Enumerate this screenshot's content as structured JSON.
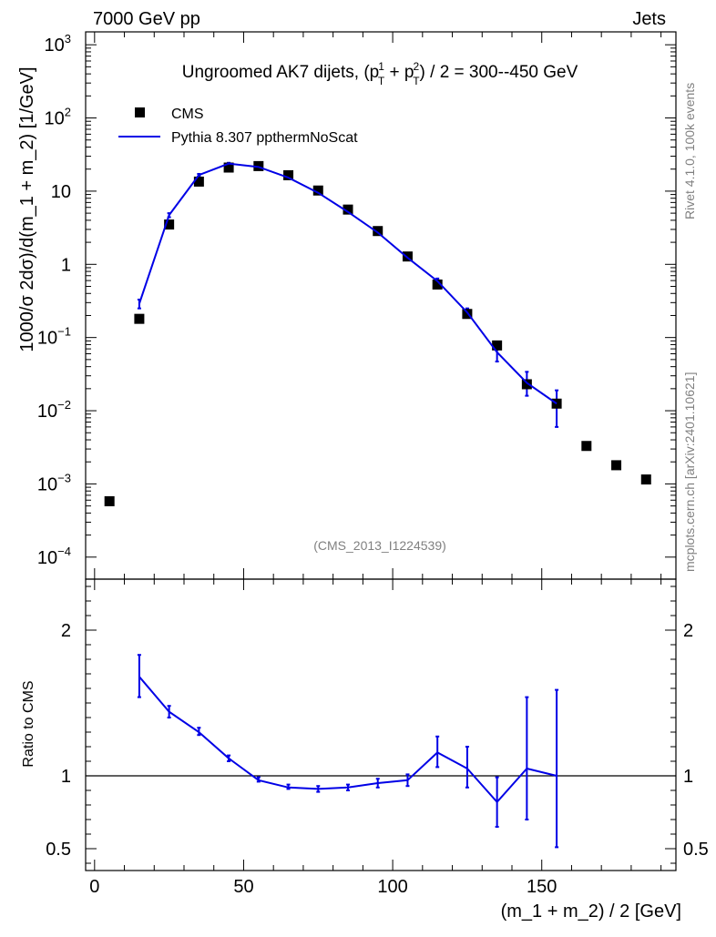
{
  "header": {
    "left": "7000 GeV pp",
    "right": "Jets",
    "side_top": "Rivet 4.1.0,  100k events",
    "side_bottom": "mcplots.cern.ch [arXiv:2401.10621]"
  },
  "chart_data": [
    {
      "type": "scatter",
      "panel": "main",
      "title_parts": {
        "prefix": "Ungroomed AK7 dijets, (p",
        "sup1": "1",
        "sub1": "T",
        "mid": " + p",
        "sup2": "2",
        "sub2": "T",
        "suffix": ") / 2 = 300--450 GeV"
      },
      "ylabel": "1000/σ  2dσ)/d(m_1 + m_2) [1/GeV]",
      "xlabel": "(m_1 + m_2) / 2 [GeV]",
      "yscale": "log",
      "xlim": [
        -3,
        195
      ],
      "ylim": [
        5e-05,
        1500
      ],
      "x_ticks": [
        "0",
        "50",
        "100",
        "150"
      ],
      "x_tick_values": [
        0,
        50,
        100,
        150
      ],
      "y_ticks": [
        {
          "value": 0.0001,
          "mant": "10",
          "exp": "−4"
        },
        {
          "value": 0.001,
          "mant": "10",
          "exp": "−3"
        },
        {
          "value": 0.01,
          "mant": "10",
          "exp": "−2"
        },
        {
          "value": 0.1,
          "mant": "10",
          "exp": "−1"
        },
        {
          "value": 1,
          "mant": "1",
          "exp": ""
        },
        {
          "value": 10,
          "mant": "10",
          "exp": ""
        },
        {
          "value": 100,
          "mant": "10",
          "exp": "2"
        },
        {
          "value": 1000,
          "mant": "10",
          "exp": "3"
        }
      ],
      "watermark": "(CMS_2013_I1224539)",
      "legend": {
        "position": "top-left",
        "data_label": "CMS",
        "mc_label": "Pythia 8.307 ppthermNoScat"
      },
      "series": [
        {
          "name": "CMS",
          "style": "black-square",
          "x": [
            5,
            15,
            25,
            35,
            45,
            55,
            65,
            75,
            85,
            95,
            105,
            115,
            125,
            135,
            145,
            155,
            165,
            175,
            185
          ],
          "y": [
            0.00058,
            0.18,
            3.5,
            13.5,
            21,
            22,
            16.5,
            10.2,
            5.6,
            2.85,
            1.28,
            0.53,
            0.21,
            0.078,
            0.023,
            0.0125,
            0.0033,
            0.0018,
            0.00115
          ]
        },
        {
          "name": "Pythia 8.307 ppthermNoScat",
          "style": "blue-line",
          "x": [
            15,
            25,
            35,
            45,
            55,
            65,
            75,
            85,
            95,
            105,
            115,
            125,
            135,
            145,
            155
          ],
          "y": [
            0.29,
            4.7,
            16.6,
            23.8,
            21.4,
            15.3,
            9.5,
            5.2,
            2.72,
            1.23,
            0.59,
            0.22,
            0.063,
            0.024,
            0.0125
          ],
          "y_err_low": [
            0.25,
            4.4,
            16.0,
            23.2,
            20.9,
            14.9,
            9.2,
            5.0,
            2.6,
            1.17,
            0.54,
            0.19,
            0.047,
            0.016,
            0.006
          ],
          "y_err_high": [
            0.33,
            5.0,
            17.2,
            24.4,
            21.9,
            15.7,
            9.8,
            5.4,
            2.84,
            1.29,
            0.64,
            0.25,
            0.08,
            0.034,
            0.019
          ]
        }
      ]
    },
    {
      "type": "line",
      "panel": "ratio",
      "ylabel": "Ratio to CMS",
      "xlim": [
        -3,
        195
      ],
      "ylim": [
        0.35,
        2.35
      ],
      "y_ticks": [
        "0.5",
        "1",
        "2"
      ],
      "y_tick_values": [
        0.5,
        1,
        2
      ],
      "reference_line": 1,
      "series": [
        {
          "name": "Pythia 8.307 ppthermNoScat / CMS",
          "x": [
            15,
            25,
            35,
            45,
            55,
            65,
            75,
            85,
            95,
            105,
            115,
            125,
            135,
            145,
            155
          ],
          "y": [
            1.68,
            1.44,
            1.3,
            1.12,
            0.97,
            0.92,
            0.91,
            0.92,
            0.95,
            0.97,
            1.16,
            1.05,
            0.82,
            1.05,
            1.0
          ],
          "y_err_low": [
            1.54,
            1.4,
            1.28,
            1.1,
            0.96,
            0.91,
            0.89,
            0.9,
            0.92,
            0.93,
            1.06,
            0.92,
            0.65,
            0.7,
            0.51
          ],
          "y_err_high": [
            1.83,
            1.48,
            1.33,
            1.14,
            0.99,
            0.94,
            0.93,
            0.94,
            0.98,
            1.01,
            1.27,
            1.2,
            0.99,
            1.54,
            1.59
          ]
        }
      ]
    }
  ]
}
